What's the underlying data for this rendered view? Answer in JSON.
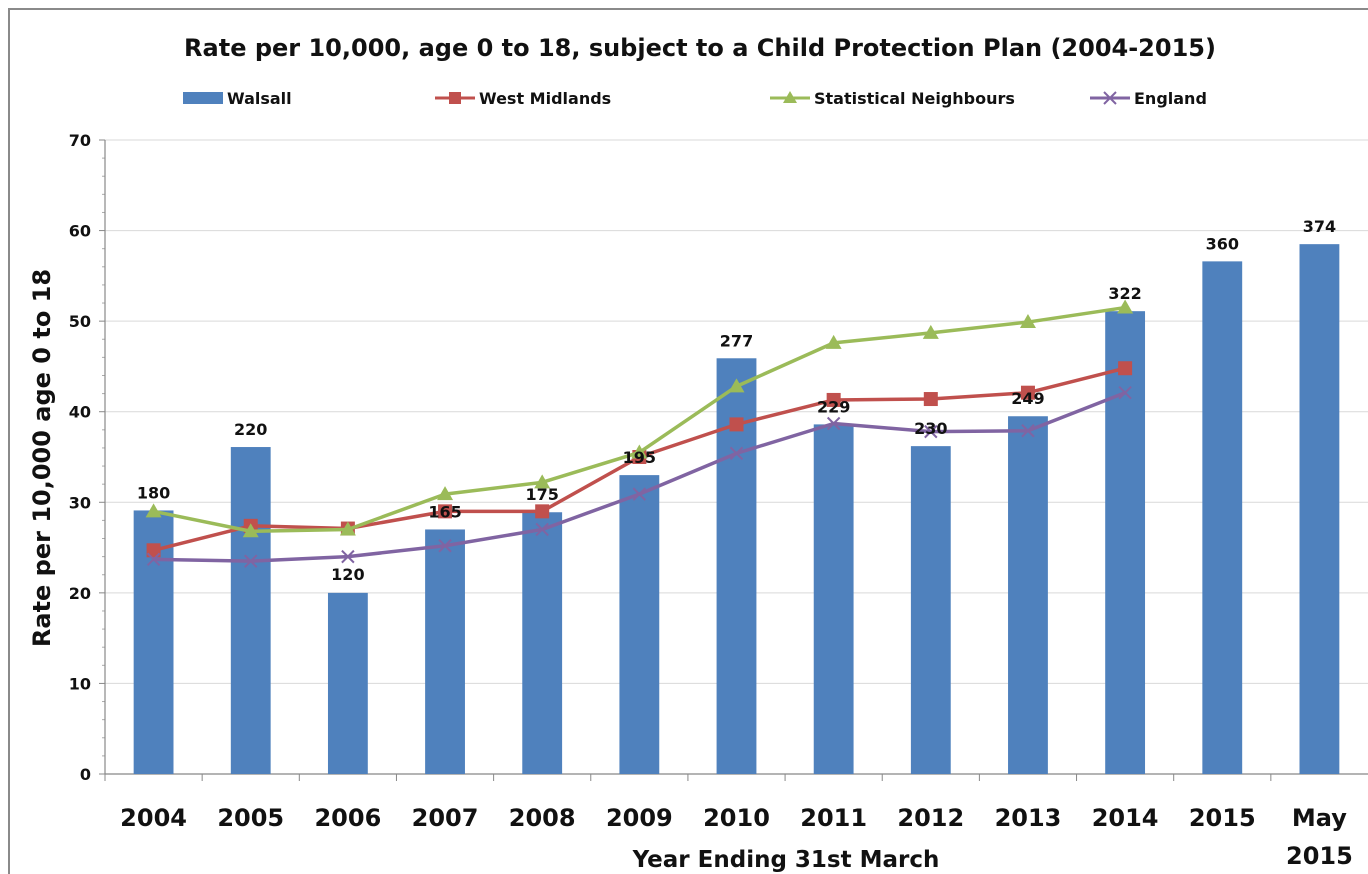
{
  "chart_data": {
    "type": "bar",
    "title": "Rate per 10,000, age 0 to 18, subject to a Child Protection Plan (2004-2015)",
    "xlabel": "Year Ending 31st March",
    "ylabel": "Rate per 10,000 age 0 to 18",
    "ylim": [
      0,
      70
    ],
    "yticks": [
      "0",
      "10",
      "20",
      "30",
      "40",
      "50",
      "60",
      "70"
    ],
    "categories": [
      "2004",
      "2005",
      "2006",
      "2007",
      "2008",
      "2009",
      "2010",
      "2011",
      "2012",
      "2013",
      "2014",
      "2015",
      "May 2015"
    ],
    "grid": true,
    "legend_position": "top",
    "series": [
      {
        "name": "Walsall",
        "kind": "bar",
        "color": "#4f81bd",
        "values": [
          29.1,
          36.1,
          20.0,
          27.0,
          28.9,
          33.0,
          45.9,
          38.6,
          36.2,
          39.5,
          51.1,
          56.6,
          58.5
        ],
        "data_labels": [
          "180",
          "220",
          "120",
          "165",
          "175",
          "195",
          "277",
          "229",
          "230",
          "249",
          "322",
          "360",
          "374"
        ]
      },
      {
        "name": "West Midlands",
        "kind": "line",
        "marker": "square",
        "color": "#c0504d",
        "values": [
          24.7,
          27.4,
          27.1,
          29.0,
          29.0,
          35.0,
          38.6,
          41.3,
          41.4,
          42.1,
          44.8,
          null,
          null
        ]
      },
      {
        "name": "Statistical Neighbours",
        "kind": "line",
        "marker": "triangle",
        "color": "#9bbb59",
        "values": [
          29.0,
          26.8,
          27.0,
          30.9,
          32.2,
          35.5,
          42.8,
          47.6,
          48.7,
          49.9,
          51.5,
          null,
          null
        ]
      },
      {
        "name": "England",
        "kind": "line",
        "marker": "x",
        "color": "#8064a2",
        "values": [
          23.7,
          23.5,
          24.0,
          25.2,
          27.0,
          30.9,
          35.4,
          38.7,
          37.8,
          37.9,
          42.1,
          null,
          null
        ]
      }
    ]
  }
}
